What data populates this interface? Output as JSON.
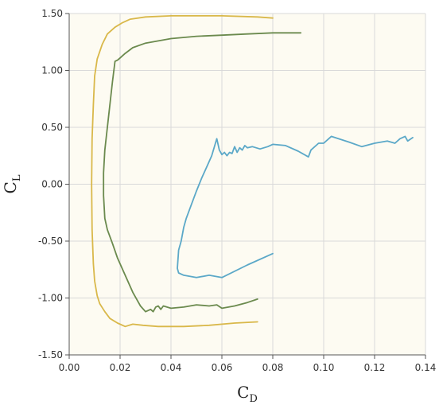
{
  "chart_data": {
    "type": "line",
    "xlabel": {
      "base": "C",
      "sub": "D"
    },
    "ylabel": {
      "base": "C",
      "sub": "L"
    },
    "xlim": [
      0,
      0.14
    ],
    "ylim": [
      -1.5,
      1.5
    ],
    "x_ticks": [
      "0.00",
      "0.02",
      "0.04",
      "0.06",
      "0.08",
      "0.10",
      "0.12",
      "0.14"
    ],
    "y_ticks": [
      "1.50",
      "1.00",
      "0.50",
      "0.00",
      "-0.50",
      "-1.00",
      "-1.50"
    ],
    "grid": true,
    "background": "#fdfbf2",
    "series": [
      {
        "color": "#d9b84a",
        "x": [
          0.08,
          0.074,
          0.06,
          0.05,
          0.04,
          0.03,
          0.024,
          0.021,
          0.018,
          0.015,
          0.013,
          0.011,
          0.01,
          0.0095,
          0.009,
          0.0088,
          0.009,
          0.0095,
          0.01,
          0.011,
          0.012,
          0.014,
          0.016,
          0.019,
          0.022,
          0.025,
          0.029,
          0.035,
          0.045,
          0.055,
          0.065,
          0.074
        ],
        "y": [
          1.46,
          1.47,
          1.48,
          1.48,
          1.48,
          1.47,
          1.45,
          1.42,
          1.38,
          1.32,
          1.23,
          1.1,
          0.95,
          0.7,
          0.4,
          0.0,
          -0.4,
          -0.7,
          -0.85,
          -0.98,
          -1.05,
          -1.12,
          -1.18,
          -1.22,
          -1.25,
          -1.23,
          -1.24,
          -1.25,
          -1.25,
          -1.24,
          -1.22,
          -1.21
        ]
      },
      {
        "color": "#6b8a4e",
        "x": [
          0.091,
          0.088,
          0.08,
          0.07,
          0.06,
          0.05,
          0.04,
          0.03,
          0.025,
          0.022,
          0.02,
          0.019,
          0.018,
          0.017,
          0.016,
          0.015,
          0.014,
          0.0135,
          0.0135,
          0.014,
          0.015,
          0.017,
          0.019,
          0.022,
          0.025,
          0.028,
          0.03,
          0.032,
          0.033,
          0.034,
          0.035,
          0.036,
          0.037,
          0.04,
          0.045,
          0.05,
          0.055,
          0.058,
          0.06,
          0.065,
          0.07,
          0.074
        ],
        "y": [
          1.33,
          1.33,
          1.33,
          1.32,
          1.31,
          1.3,
          1.28,
          1.24,
          1.2,
          1.15,
          1.11,
          1.09,
          1.08,
          0.9,
          0.7,
          0.5,
          0.3,
          0.1,
          -0.1,
          -0.3,
          -0.4,
          -0.52,
          -0.65,
          -0.8,
          -0.95,
          -1.07,
          -1.12,
          -1.1,
          -1.12,
          -1.08,
          -1.07,
          -1.1,
          -1.07,
          -1.09,
          -1.08,
          -1.06,
          -1.07,
          -1.06,
          -1.09,
          -1.07,
          -1.04,
          -1.01
        ]
      },
      {
        "color": "#5ba8c8",
        "x": [
          0.08,
          0.07,
          0.06,
          0.055,
          0.05,
          0.045,
          0.043,
          0.0425,
          0.043,
          0.044,
          0.045,
          0.046,
          0.047,
          0.048,
          0.05,
          0.052,
          0.054,
          0.056,
          0.058,
          0.059,
          0.06,
          0.061,
          0.062,
          0.063,
          0.064,
          0.065,
          0.066,
          0.067,
          0.068,
          0.069,
          0.07,
          0.072,
          0.075,
          0.078,
          0.08,
          0.085,
          0.09,
          0.094,
          0.095,
          0.098,
          0.1,
          0.103,
          0.11,
          0.115,
          0.12,
          0.125,
          0.128,
          0.13,
          0.132,
          0.133,
          0.135
        ],
        "y": [
          -0.61,
          -0.71,
          -0.82,
          -0.8,
          -0.82,
          -0.8,
          -0.78,
          -0.74,
          -0.58,
          -0.5,
          -0.38,
          -0.3,
          -0.24,
          -0.18,
          -0.06,
          0.05,
          0.15,
          0.25,
          0.4,
          0.3,
          0.26,
          0.28,
          0.25,
          0.28,
          0.27,
          0.33,
          0.28,
          0.32,
          0.3,
          0.34,
          0.32,
          0.33,
          0.31,
          0.33,
          0.35,
          0.34,
          0.29,
          0.24,
          0.3,
          0.36,
          0.36,
          0.42,
          0.37,
          0.33,
          0.36,
          0.38,
          0.36,
          0.4,
          0.42,
          0.38,
          0.41
        ]
      }
    ]
  }
}
